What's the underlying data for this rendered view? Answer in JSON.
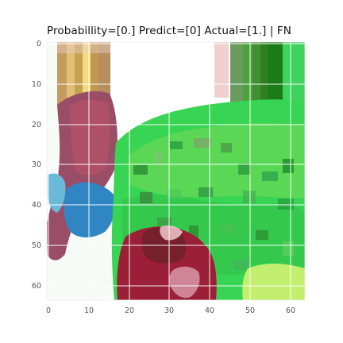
{
  "figure": {
    "title": "Probabillity=[0.] Predict=[0] Actual=[1.] | FN"
  },
  "image_plot": {
    "type": "image",
    "image_size": [
      64,
      64
    ],
    "grid": true,
    "x_ticks": [
      "0",
      "10",
      "20",
      "30",
      "40",
      "50",
      "60"
    ],
    "y_ticks": [
      "0",
      "10",
      "20",
      "30",
      "40",
      "50",
      "60"
    ],
    "x_tick_values": [
      0,
      10,
      20,
      30,
      40,
      50,
      60
    ],
    "y_tick_values": [
      0,
      10,
      20,
      30,
      40,
      50,
      60
    ],
    "xlim": [
      -0.5,
      63.5
    ],
    "ylim": [
      63.5,
      -0.5
    ],
    "colors": {
      "grid": "#ffffff",
      "tick_text": "#555555",
      "title_text": "#111111"
    }
  }
}
